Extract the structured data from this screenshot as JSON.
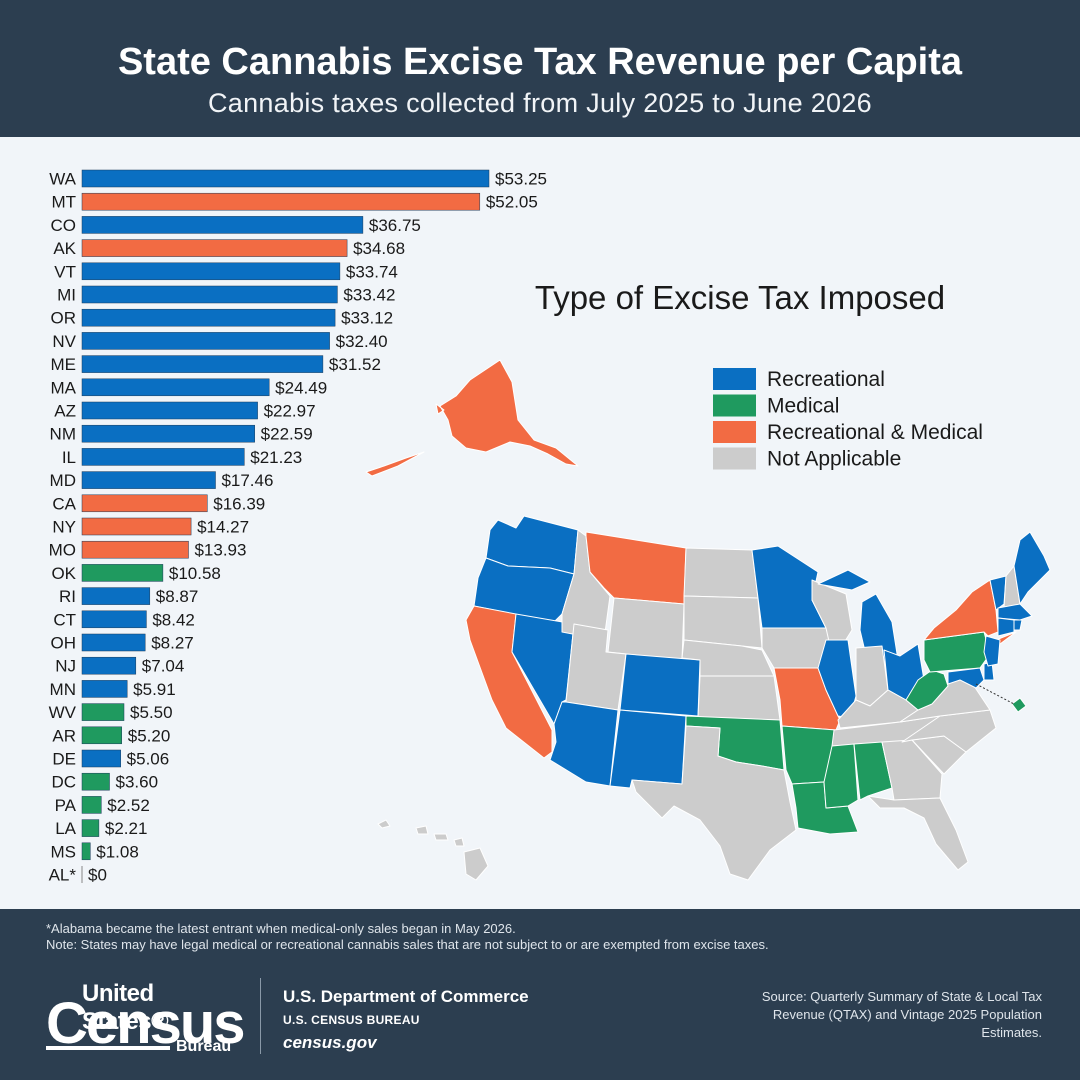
{
  "header": {
    "title": "State Cannabis Excise Tax Revenue per Capita",
    "subtitle": "Cannabis taxes collected from July 2025 to June 2026"
  },
  "colors": {
    "recreational": "#0a6fc2",
    "medical": "#1f9a5f",
    "both": "#f26b43",
    "na": "#cccccc",
    "background": "#f1f5f9",
    "header": "#2c3e50"
  },
  "chart_data": {
    "type": "bar",
    "orientation": "horizontal",
    "value_prefix": "$",
    "categories": [
      "WA",
      "MT",
      "CO",
      "AK",
      "VT",
      "MI",
      "OR",
      "NV",
      "ME",
      "MA",
      "AZ",
      "NM",
      "IL",
      "MD",
      "CA",
      "NY",
      "MO",
      "OK",
      "RI",
      "CT",
      "OH",
      "NJ",
      "MN",
      "WV",
      "AR",
      "DE",
      "DC",
      "PA",
      "LA",
      "MS",
      "AL*"
    ],
    "values": [
      53.25,
      52.05,
      36.75,
      34.68,
      33.74,
      33.42,
      33.12,
      32.4,
      31.52,
      24.49,
      22.97,
      22.59,
      21.23,
      17.46,
      16.39,
      14.27,
      13.93,
      10.58,
      8.87,
      8.42,
      8.27,
      7.04,
      5.91,
      5.5,
      5.2,
      5.06,
      3.6,
      2.52,
      2.21,
      1.08,
      0
    ],
    "labels": [
      "$53.25",
      "$52.05",
      "$36.75",
      "$34.68",
      "$33.74",
      "$33.42",
      "$33.12",
      "$32.40",
      "$31.52",
      "$24.49",
      "$22.97",
      "$22.59",
      "$21.23",
      "$17.46",
      "$16.39",
      "$14.27",
      "$13.93",
      "$10.58",
      "$8.87",
      "$8.42",
      "$8.27",
      "$7.04",
      "$5.91",
      "$5.50",
      "$5.20",
      "$5.06",
      "$3.60",
      "$2.52",
      "$2.21",
      "$1.08",
      "$0"
    ],
    "tax_type": [
      "recreational",
      "both",
      "recreational",
      "both",
      "recreational",
      "recreational",
      "recreational",
      "recreational",
      "recreational",
      "recreational",
      "recreational",
      "recreational",
      "recreational",
      "recreational",
      "both",
      "both",
      "both",
      "medical",
      "recreational",
      "recreational",
      "recreational",
      "recreational",
      "recreational",
      "medical",
      "medical",
      "recreational",
      "medical",
      "medical",
      "medical",
      "medical",
      "medical"
    ],
    "xlim": [
      0,
      53.25
    ]
  },
  "map": {
    "title": "Type of Excise Tax Imposed",
    "legend": [
      {
        "key": "recreational",
        "label": "Recreational"
      },
      {
        "key": "medical",
        "label": "Medical"
      },
      {
        "key": "both",
        "label": "Recreational & Medical"
      },
      {
        "key": "na",
        "label": "Not Applicable"
      }
    ],
    "state_types": {
      "WA": "recreational",
      "OR": "recreational",
      "CA": "both",
      "NV": "recreational",
      "ID": "na",
      "MT": "both",
      "WY": "na",
      "UT": "na",
      "AZ": "recreational",
      "CO": "recreational",
      "NM": "recreational",
      "ND": "na",
      "SD": "na",
      "NE": "na",
      "KS": "na",
      "OK": "medical",
      "TX": "na",
      "MN": "recreational",
      "IA": "na",
      "MO": "both",
      "AR": "medical",
      "LA": "medical",
      "WI": "na",
      "IL": "recreational",
      "MI": "recreational",
      "IN": "na",
      "OH": "recreational",
      "KY": "na",
      "TN": "na",
      "MS": "medical",
      "AL": "medical",
      "GA": "na",
      "FL": "na",
      "SC": "na",
      "NC": "na",
      "VA": "na",
      "WV": "medical",
      "PA": "medical",
      "NY": "both",
      "VT": "recreational",
      "NH": "na",
      "ME": "recreational",
      "MA": "recreational",
      "RI": "recreational",
      "CT": "recreational",
      "NJ": "recreational",
      "DE": "recreational",
      "MD": "recreational",
      "DC": "medical",
      "AK": "both",
      "HI": "na"
    }
  },
  "footer": {
    "note1": "*Alabama became the latest entrant when medical-only sales began in May 2026.",
    "note2": "Note: States may have legal medical or recreational cannabis sales that are not subject to or are exempted from excise taxes.",
    "logo_us": "United States®",
    "logo_census": "Census",
    "logo_bureau": "Bureau",
    "dept": "U.S. Department of Commerce",
    "bureau": "U.S. CENSUS BUREAU",
    "site": "census.gov",
    "source": "Source: Quarterly Summary of State & Local Tax Revenue (QTAX) and Vintage 2025 Population Estimates."
  }
}
